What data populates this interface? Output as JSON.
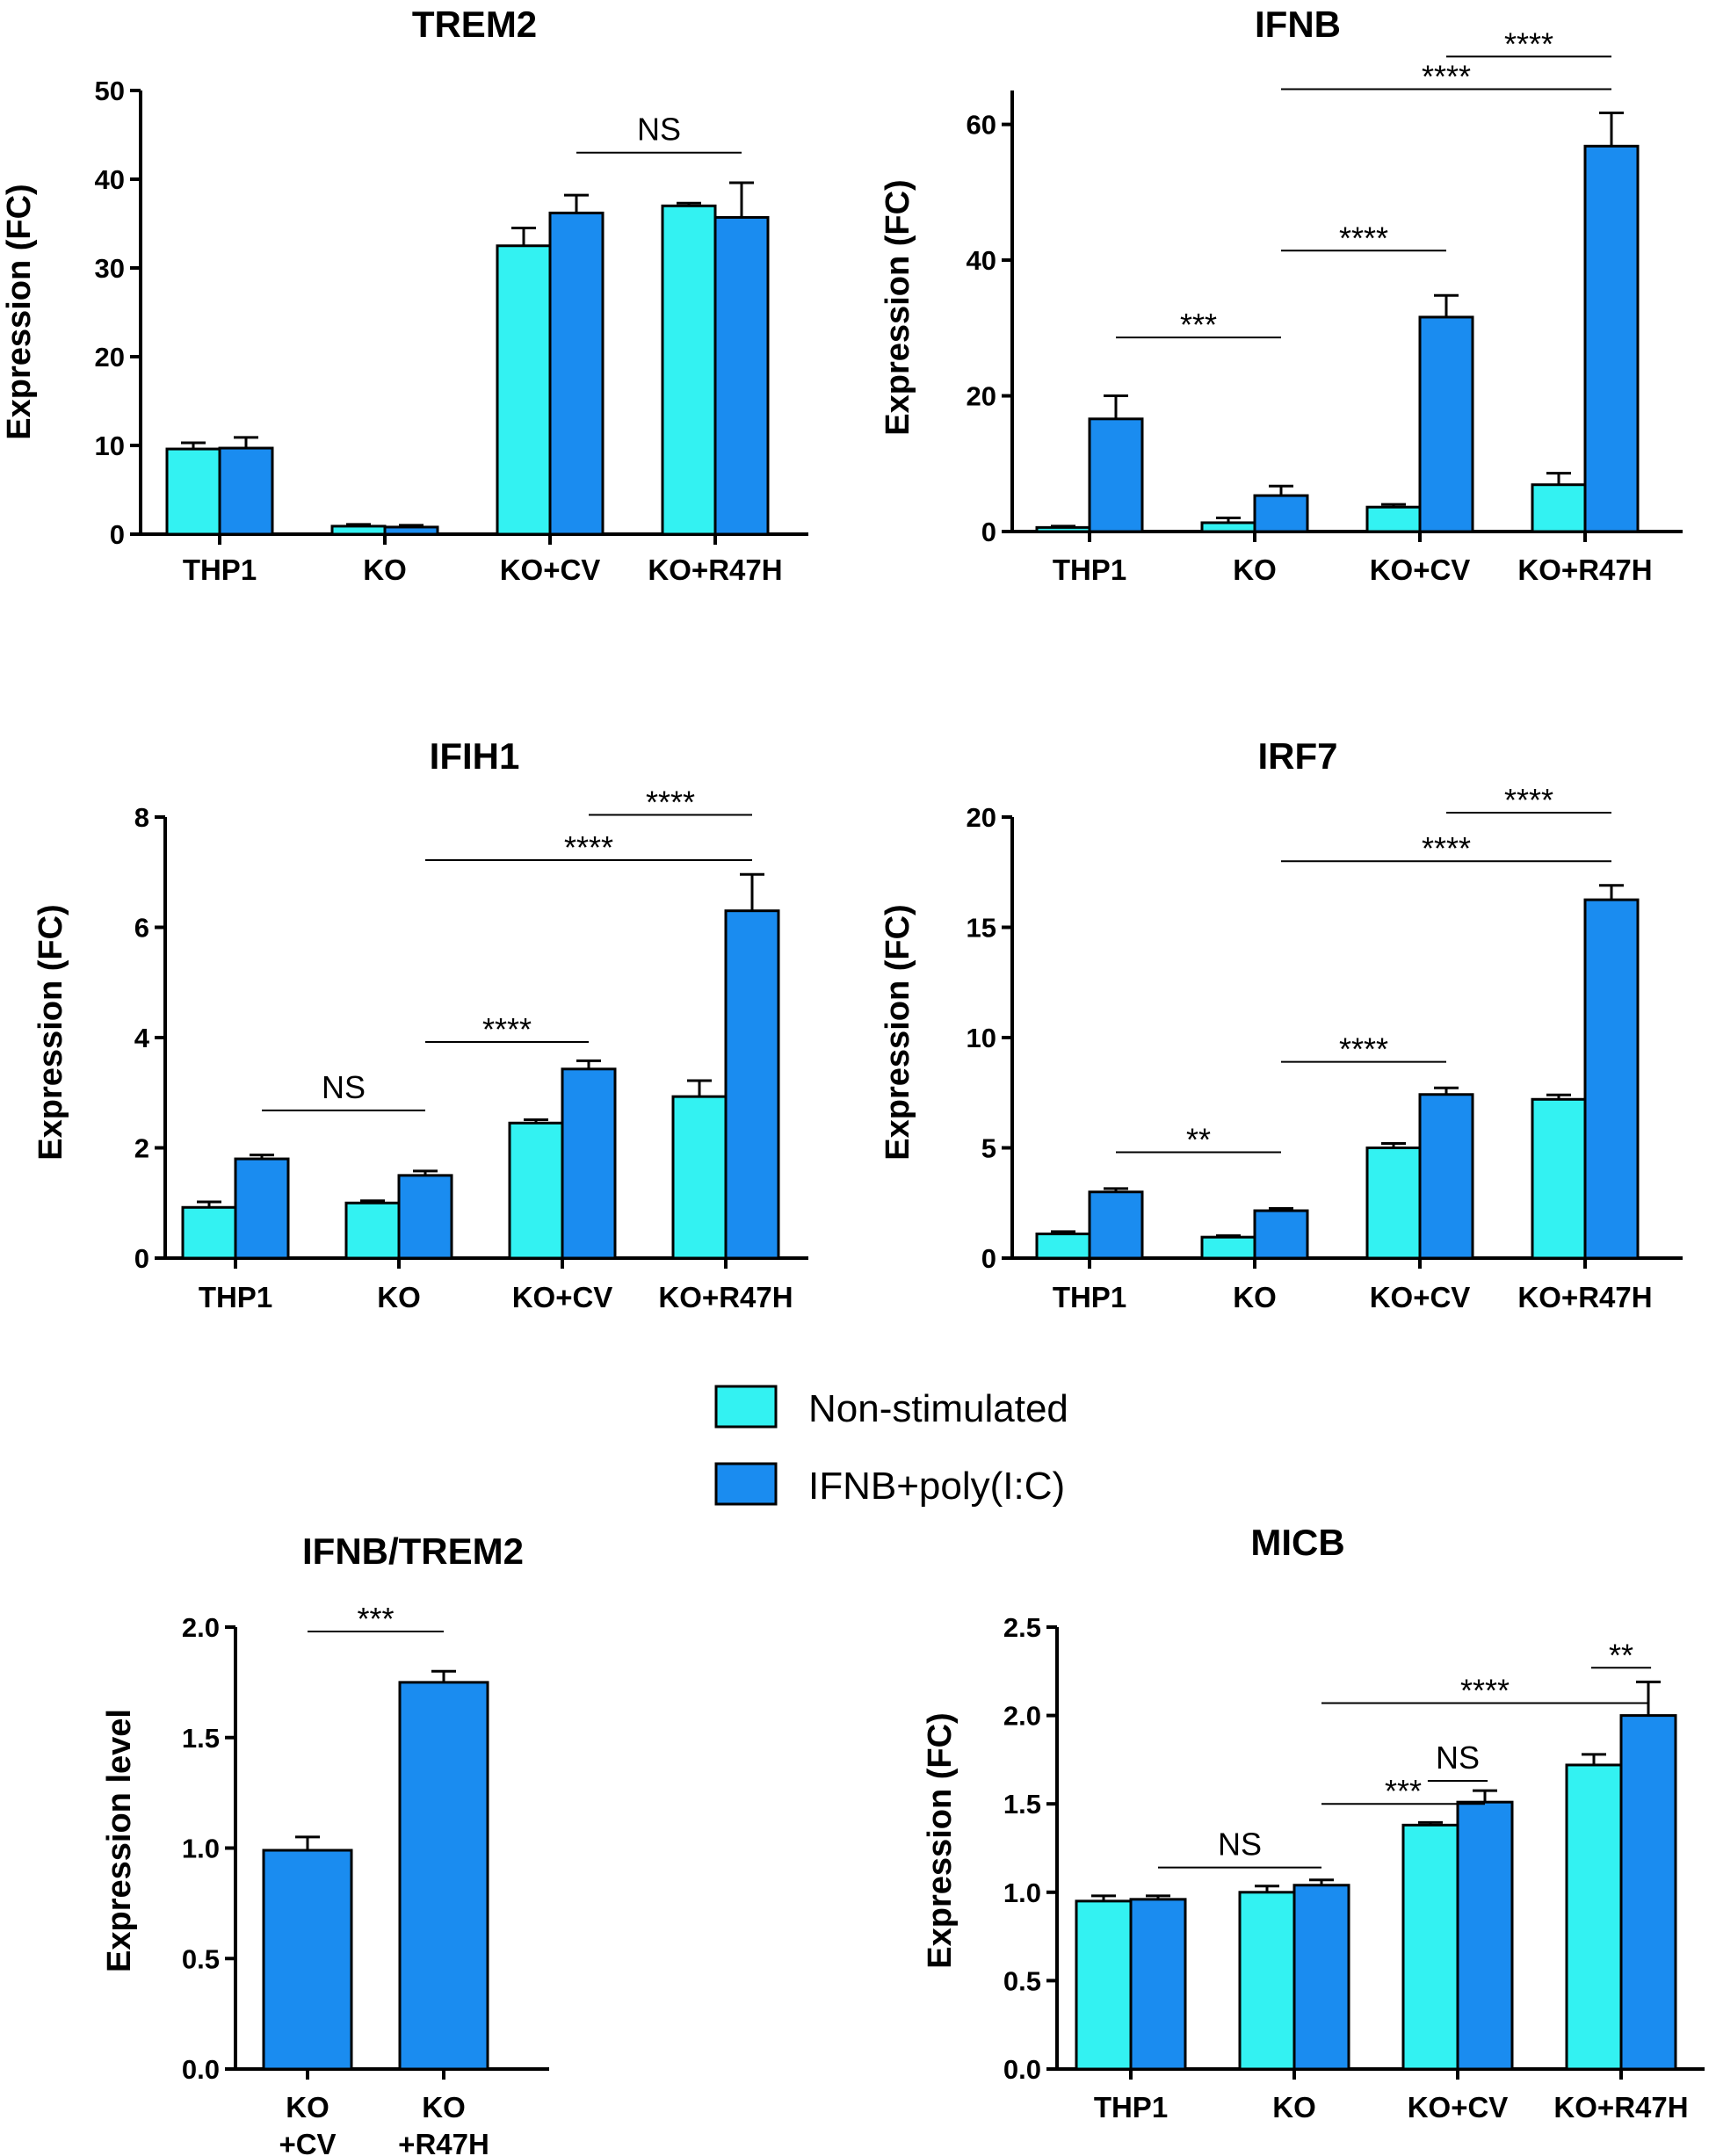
{
  "colors": {
    "non_stimulated": "#33f2f2",
    "stimulated": "#1a8cf0",
    "stroke": "#000000"
  },
  "legend": {
    "entries": [
      {
        "label": "Non-stimulated",
        "color": "#33f2f2"
      },
      {
        "label": "IFNB+poly(I:C)",
        "color": "#1a8cf0"
      }
    ]
  },
  "chart_data": [
    {
      "id": "trem2",
      "type": "bar",
      "title": "TREM2",
      "ylabel": "Expression (FC)",
      "ylim": [
        0,
        50
      ],
      "yticks": [
        0,
        10,
        20,
        30,
        40,
        50
      ],
      "ytick_labels": [
        "0",
        "10",
        "20",
        "30",
        "40",
        "50"
      ],
      "categories": [
        "THP1",
        "KO",
        "KO+CV",
        "KO+R47H"
      ],
      "series": [
        {
          "name": "Non-stimulated",
          "values": [
            9.6,
            0.9,
            32.5,
            37.0
          ],
          "errors": [
            0.7,
            0.2,
            2.0,
            0.3
          ]
        },
        {
          "name": "IFNB+poly(I:C)",
          "values": [
            9.7,
            0.8,
            36.2,
            35.7
          ],
          "errors": [
            1.2,
            0.2,
            2.0,
            3.9
          ]
        }
      ],
      "significance": [
        {
          "label": "NS",
          "from_cat": 2,
          "to_cat": 3,
          "y": 43
        }
      ]
    },
    {
      "id": "ifnb",
      "type": "bar",
      "title": "IFNB",
      "ylabel": "Expression (FC)",
      "ylim": [
        0,
        65
      ],
      "yticks": [
        0,
        20,
        40,
        60
      ],
      "ytick_labels": [
        "0",
        "20",
        "40",
        "60"
      ],
      "categories": [
        "THP1",
        "KO",
        "KO+CV",
        "KO+R47H"
      ],
      "series": [
        {
          "name": "Non-stimulated",
          "values": [
            0.6,
            1.3,
            3.6,
            6.9
          ],
          "errors": [
            0.2,
            0.7,
            0.4,
            1.7
          ]
        },
        {
          "name": "IFNB+poly(I:C)",
          "values": [
            16.6,
            5.3,
            31.6,
            56.8
          ],
          "errors": [
            3.4,
            1.4,
            3.2,
            4.9
          ]
        }
      ],
      "significance": [
        {
          "label": "***",
          "from_cat": 0,
          "to_cat": 1,
          "y": 28.6
        },
        {
          "label": "****",
          "from_cat": 1,
          "to_cat": 2,
          "y": 41.4
        },
        {
          "label": "****",
          "from_cat": 1,
          "to_cat": 3,
          "y": 65.2
        },
        {
          "label": "****",
          "from_cat": 2,
          "to_cat": 3,
          "y": 70.0
        }
      ]
    },
    {
      "id": "ifih1",
      "type": "bar",
      "title": "IFIH1",
      "ylabel": "Expression (FC)",
      "ylim": [
        0,
        8
      ],
      "yticks": [
        0,
        2,
        4,
        6,
        8
      ],
      "ytick_labels": [
        "0",
        "2",
        "4",
        "6",
        "8"
      ],
      "categories": [
        "THP1",
        "KO",
        "KO+CV",
        "KO+R47H"
      ],
      "series": [
        {
          "name": "Non-stimulated",
          "values": [
            0.92,
            1.0,
            2.45,
            2.93
          ],
          "errors": [
            0.1,
            0.04,
            0.06,
            0.29
          ]
        },
        {
          "name": "IFNB+poly(I:C)",
          "values": [
            1.8,
            1.5,
            3.43,
            6.3
          ],
          "errors": [
            0.07,
            0.08,
            0.15,
            0.66
          ]
        }
      ],
      "significance": [
        {
          "label": "NS",
          "from_cat": 0,
          "to_cat": 1,
          "y": 2.68
        },
        {
          "label": "****",
          "from_cat": 1,
          "to_cat": 2,
          "y": 3.92
        },
        {
          "label": "****",
          "from_cat": 1,
          "to_cat": 3,
          "y": 7.22
        },
        {
          "label": "****",
          "from_cat": 2,
          "to_cat": 3,
          "y": 8.04
        }
      ]
    },
    {
      "id": "irf7",
      "type": "bar",
      "title": "IRF7",
      "ylabel": "Expression (FC)",
      "ylim": [
        0,
        20
      ],
      "yticks": [
        0,
        5,
        10,
        15,
        20
      ],
      "ytick_labels": [
        "0",
        "5",
        "10",
        "15",
        "20"
      ],
      "categories": [
        "THP1",
        "KO",
        "KO+CV",
        "KO+R47H"
      ],
      "series": [
        {
          "name": "Non-stimulated",
          "values": [
            1.1,
            0.95,
            5.0,
            7.2
          ],
          "errors": [
            0.1,
            0.07,
            0.2,
            0.2
          ]
        },
        {
          "name": "IFNB+poly(I:C)",
          "values": [
            3.0,
            2.15,
            7.42,
            16.25
          ],
          "errors": [
            0.15,
            0.1,
            0.3,
            0.65
          ]
        }
      ],
      "significance": [
        {
          "label": "**",
          "from_cat": 0,
          "to_cat": 1,
          "y": 4.8
        },
        {
          "label": "****",
          "from_cat": 1,
          "to_cat": 2,
          "y": 8.9
        },
        {
          "label": "****",
          "from_cat": 1,
          "to_cat": 3,
          "y": 18.0
        },
        {
          "label": "****",
          "from_cat": 2,
          "to_cat": 3,
          "y": 20.2
        }
      ]
    },
    {
      "id": "ifnb_trem2",
      "type": "bar",
      "title": "IFNB/TREM2",
      "ylabel": "Expression level",
      "ylim": [
        0,
        2
      ],
      "yticks": [
        0,
        0.5,
        1.0,
        1.5,
        2.0
      ],
      "ytick_labels": [
        "0.0",
        "0.5",
        "1.0",
        "1.5",
        "2.0"
      ],
      "categories": [
        [
          "KO",
          "+CV"
        ],
        [
          "KO",
          "+R47H"
        ]
      ],
      "series": [
        {
          "name": "IFNB+poly(I:C)",
          "values": [
            0.99,
            1.75
          ],
          "errors": [
            0.06,
            0.05
          ]
        }
      ],
      "significance": [
        {
          "label": "***",
          "from_cat": 0,
          "to_cat": 1,
          "y": 1.98
        }
      ]
    },
    {
      "id": "micb",
      "type": "bar",
      "title": "MICB",
      "ylabel": "Expression (FC)",
      "ylim": [
        0,
        2.5
      ],
      "yticks": [
        0,
        0.5,
        1.0,
        1.5,
        2.0,
        2.5
      ],
      "ytick_labels": [
        "0.0",
        "0.5",
        "1.0",
        "1.5",
        "2.0",
        "2.5"
      ],
      "categories": [
        "THP1",
        "KO",
        "KO+CV",
        "KO+R47H"
      ],
      "series": [
        {
          "name": "Non-stimulated",
          "values": [
            0.95,
            1.0,
            1.38,
            1.72
          ],
          "errors": [
            0.03,
            0.035,
            0.015,
            0.06
          ]
        },
        {
          "name": "IFNB+poly(I:C)",
          "values": [
            0.96,
            1.04,
            1.51,
            2.0
          ],
          "errors": [
            0.02,
            0.03,
            0.065,
            0.19
          ]
        }
      ],
      "significance": [
        {
          "label": "NS",
          "from_cat": 0,
          "to_cat": 1,
          "y": 1.14
        },
        {
          "label": "***",
          "from_cat": 1,
          "to_cat": 2,
          "y": 1.5
        },
        {
          "label": "NS",
          "from_cat": 2,
          "to_cat": 2,
          "y": 1.63
        },
        {
          "label": "****",
          "from_cat": 1,
          "to_cat": 3,
          "y": 2.07
        },
        {
          "label": "**",
          "from_cat": 3,
          "to_cat": 3,
          "y": 2.27
        }
      ]
    }
  ]
}
